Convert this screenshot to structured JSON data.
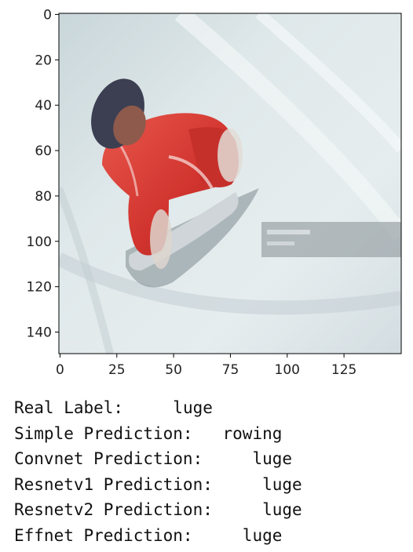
{
  "figure": {
    "y_ticks": [
      "0",
      "20",
      "40",
      "60",
      "80",
      "100",
      "120",
      "140"
    ],
    "x_ticks": [
      "0",
      "25",
      "50",
      "75",
      "100",
      "125"
    ],
    "image_content": "luge-athlete-photo"
  },
  "output": {
    "lines": [
      {
        "label": "Real Label:",
        "value": "luge"
      },
      {
        "label": "Simple Prediction:",
        "value": "rowing"
      },
      {
        "label": "Convnet Prediction:",
        "value": "luge"
      },
      {
        "label": "Resnetv1 Prediction:",
        "value": "luge"
      },
      {
        "label": "Resnetv2 Prediction:",
        "value": "luge"
      },
      {
        "label": "Effnet Prediction:",
        "value": "luge"
      }
    ]
  },
  "colors": {
    "ice": "#d9e3e6",
    "suit_red": "#d93a33",
    "helmet": "#3c3f52",
    "shadow": "#7e8b90"
  }
}
